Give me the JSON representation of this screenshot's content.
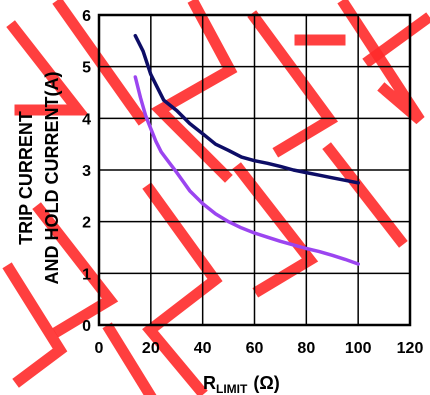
{
  "chart_data": {
    "type": "line",
    "ylabel_line1": "TRIP CURRENT",
    "ylabel_line2": "AND HOLD CURRENT(A)",
    "xlabel_main": "R",
    "xlabel_sub": "LIMIT",
    "xlabel_unit": "(Ω)",
    "xlim": [
      0,
      120
    ],
    "ylim": [
      0,
      6
    ],
    "x_ticks": [
      "0",
      "20",
      "40",
      "60",
      "80",
      "100",
      "120"
    ],
    "y_ticks": [
      "0",
      "1",
      "2",
      "3",
      "4",
      "5",
      "6"
    ],
    "grid": true,
    "series": [
      {
        "color": "#0d0d66",
        "points": [
          [
            14,
            5.6
          ],
          [
            17,
            5.3
          ],
          [
            20,
            4.85
          ],
          [
            22,
            4.65
          ],
          [
            25,
            4.35
          ],
          [
            30,
            4.15
          ],
          [
            35,
            3.9
          ],
          [
            40,
            3.7
          ],
          [
            45,
            3.5
          ],
          [
            50,
            3.38
          ],
          [
            55,
            3.25
          ],
          [
            60,
            3.18
          ],
          [
            65,
            3.13
          ],
          [
            70,
            3.07
          ],
          [
            75,
            3.0
          ],
          [
            80,
            2.95
          ],
          [
            85,
            2.9
          ],
          [
            90,
            2.85
          ],
          [
            95,
            2.8
          ],
          [
            100,
            2.75
          ]
        ]
      },
      {
        "color": "#9b45f0",
        "points": [
          [
            14,
            4.8
          ],
          [
            16,
            4.4
          ],
          [
            18,
            4.05
          ],
          [
            20,
            3.8
          ],
          [
            22,
            3.55
          ],
          [
            24,
            3.35
          ],
          [
            27,
            3.15
          ],
          [
            30,
            2.95
          ],
          [
            35,
            2.6
          ],
          [
            40,
            2.35
          ],
          [
            45,
            2.15
          ],
          [
            50,
            2.0
          ],
          [
            55,
            1.88
          ],
          [
            60,
            1.78
          ],
          [
            65,
            1.7
          ],
          [
            70,
            1.62
          ],
          [
            75,
            1.55
          ],
          [
            80,
            1.48
          ],
          [
            85,
            1.42
          ],
          [
            90,
            1.35
          ],
          [
            95,
            1.27
          ],
          [
            100,
            1.18
          ]
        ]
      }
    ],
    "watermark_color": "#ff2a2a"
  }
}
